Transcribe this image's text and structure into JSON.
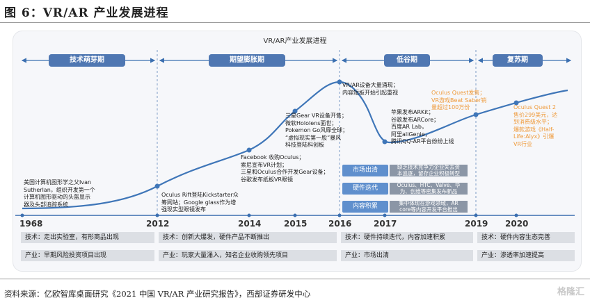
{
  "figure_title": "图 6：VR/AR 产业发展进程",
  "diagram_title": "VR/AR产业发展进程",
  "phases": [
    "技术萌芽期",
    "期望膨胀期",
    "低谷期",
    "复苏期"
  ],
  "annotations": [
    "美国计算机图形学之父Ivan\nSutherlan，组织开发第一个\n计算机图形驱动的头盔显示\n器及头部追踪系统",
    "Oculus Rift登陆Kickstarter众\n筹网站；Google glass作为增\n强现实型眼镜发布",
    "Facebook 收购Oculus；\n索尼宣布VR计划；\n三星和Oculus合作开发Gear设备；\n谷歌发布纸板VR眼镜",
    "三星Gear VR设备开售；\n微软Hololens面世；\nPokemon Go风靡全球；\n“虚拟现实第一股”暴风\n科技登陆科创板",
    "VR/AR设备大量涌现；\n内容短板开始引起重视",
    "苹果发布ARKit；\n谷歌发布ARCore；\n百度AR Lab，\n阿里aliGenie，\n腾讯QQ-AR平台纷纷上线",
    "Oculus Quest发售；\nVR游戏Beat Saber销\n量超过100万份",
    "Oculus Quest 2\n售价299美元，达\n到消费级水平；\n爆款游戏《Half-\nLife:Alyx》引爆\nVR行业"
  ],
  "trough_tags": [
    {
      "label": "市场出清",
      "desc": "缺乏技术竞争力企业失去资\n本追逐，留存企业积极转型"
    },
    {
      "label": "硬件迭代",
      "desc": "Oculus、HTC、Valve、华\n为、创维等密集发布新品"
    },
    {
      "label": "内容积累",
      "desc": "集中体现在游戏领域，AR\ncore等内容开发平台推出"
    }
  ],
  "years": [
    "1968",
    "2012",
    "2014",
    "2015",
    "2016",
    "2017",
    "2019",
    "2020"
  ],
  "bottom_rows": {
    "tech": [
      "技术：走出实验室，有形商品出现",
      "技术：创新大爆发，硬件产品不断推出",
      "技术：硬件持续迭代，内容加速积累",
      "技术：硬件内容生态完善"
    ],
    "industry": [
      "产业：早期风险投资项目出现",
      "产业：玩家大量涌入，知名企业收购领先项目",
      "产业：市场出清",
      "产业：渗透率加速提高"
    ]
  },
  "source": "资料来源：亿欧智库桌面研究《2021 中国 VR/AR 产业研究报告》，西部证券研发中心",
  "watermark": "格隆汇",
  "colors": {
    "phase_bar": "#4f77b2",
    "curve": "#3f76b8",
    "tag": "#5f8fcd",
    "orange_text": "#ef9a3a"
  }
}
